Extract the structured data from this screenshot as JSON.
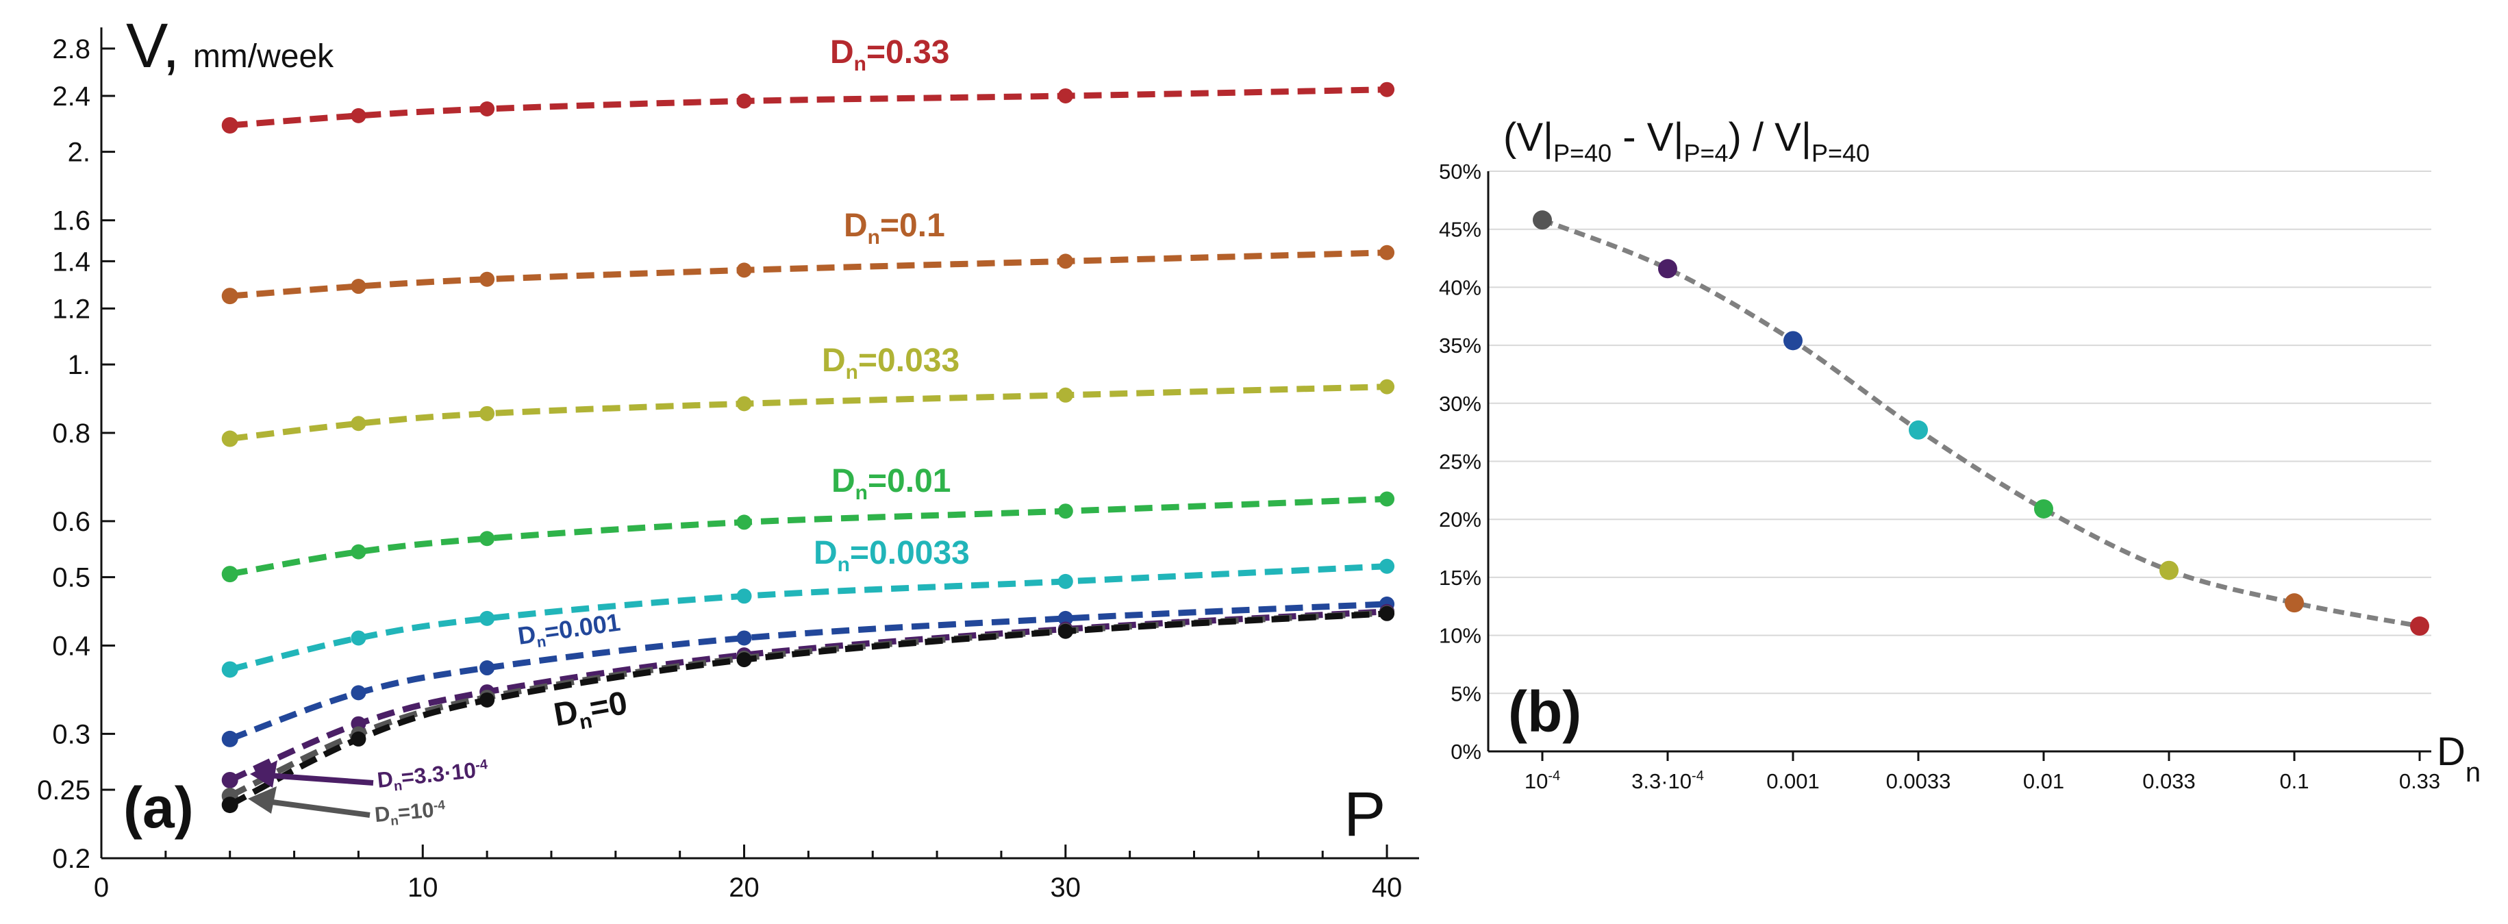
{
  "chart_data": [
    {
      "panel": "a",
      "type": "line",
      "title": "",
      "panel_label": "(a)",
      "ylabel": {
        "main": "V,",
        "unit": "mm/week"
      },
      "xlabel": "P",
      "y_scale": "log",
      "xlim": [
        0,
        41
      ],
      "ylim": [
        0.2,
        3.0
      ],
      "x_ticks": [
        0,
        10,
        20,
        30,
        40
      ],
      "y_ticks": [
        {
          "value": 0.2,
          "label": "0.2"
        },
        {
          "value": 0.25,
          "label": "0.25"
        },
        {
          "value": 0.3,
          "label": "0.3"
        },
        {
          "value": 0.4,
          "label": "0.4"
        },
        {
          "value": 0.5,
          "label": "0.5"
        },
        {
          "value": 0.6,
          "label": "0.6"
        },
        {
          "value": 0.8,
          "label": "0.8"
        },
        {
          "value": 1.0,
          "label": "1."
        },
        {
          "value": 1.2,
          "label": "1.2"
        },
        {
          "value": 1.4,
          "label": "1.4"
        },
        {
          "value": 1.6,
          "label": "1.6"
        },
        {
          "value": 2.0,
          "label": "2."
        },
        {
          "value": 2.4,
          "label": "2.4"
        },
        {
          "value": 2.8,
          "label": "2.8"
        }
      ],
      "x": [
        4,
        8,
        12,
        20,
        30,
        40
      ],
      "series": [
        {
          "name": "D_n=0.33",
          "label_base": "D",
          "label_sub": "n",
          "label_rest": "=0.33",
          "color": "#b5292e",
          "values": [
            2.18,
            2.25,
            2.3,
            2.36,
            2.4,
            2.45
          ]
        },
        {
          "name": "D_n=0.1",
          "label_base": "D",
          "label_sub": "n",
          "label_rest": "=0.1",
          "color": "#b4602a",
          "values": [
            1.25,
            1.29,
            1.32,
            1.36,
            1.4,
            1.44
          ]
        },
        {
          "name": "D_n=0.033",
          "label_base": "D",
          "label_sub": "n",
          "label_rest": "=0.033",
          "color": "#b0b335",
          "values": [
            0.785,
            0.825,
            0.852,
            0.88,
            0.905,
            0.93
          ]
        },
        {
          "name": "D_n=0.01",
          "label_base": "D",
          "label_sub": "n",
          "label_rest": "=0.01",
          "color": "#2fb34a",
          "values": [
            0.505,
            0.543,
            0.567,
            0.598,
            0.62,
            0.645
          ]
        },
        {
          "name": "D_n=0.0033",
          "label_base": "D",
          "label_sub": "n",
          "label_rest": "=0.0033",
          "color": "#21b5b9",
          "values": [
            0.37,
            0.41,
            0.437,
            0.47,
            0.493,
            0.518
          ]
        },
        {
          "name": "D_n=0.001",
          "label_base": "D",
          "label_sub": "n",
          "label_rest": "=0.001",
          "color": "#22479a",
          "values": [
            0.295,
            0.343,
            0.372,
            0.41,
            0.437,
            0.458
          ]
        },
        {
          "name": "D_n=3.3·10^-4",
          "label_base": "D",
          "label_sub": "n",
          "label_rest": "=3.3·10",
          "label_sup": "-4",
          "color": "#4b1f66",
          "values": [
            0.258,
            0.31,
            0.344,
            0.388,
            0.422,
            0.447
          ]
        },
        {
          "name": "D_n=10^-4",
          "label_base": "D",
          "label_sub": "n",
          "label_rest": "=10",
          "label_sup": "-4",
          "color": "#555555",
          "values": [
            0.245,
            0.3,
            0.338,
            0.384,
            0.42,
            0.445
          ]
        },
        {
          "name": "D_n=0",
          "label_base": "D",
          "label_sub": "n",
          "label_rest": "=0",
          "color": "#111111",
          "values": [
            0.238,
            0.295,
            0.335,
            0.382,
            0.419,
            0.444
          ]
        }
      ]
    },
    {
      "panel": "b",
      "type": "line",
      "panel_label": "(b)",
      "title": {
        "open": "(V|",
        "sub1": "P=40",
        "mid": " - V|",
        "sub2": "P=4",
        "slash": ") / V|",
        "sub3": "P=40"
      },
      "xlabel": {
        "base": "D",
        "sub": "n"
      },
      "ylim": [
        0,
        50
      ],
      "y_ticks": [
        "0%",
        "5%",
        "10%",
        "15%",
        "20%",
        "25%",
        "30%",
        "35%",
        "40%",
        "45%",
        "50%"
      ],
      "categories": [
        {
          "label": "10",
          "sup": "-4"
        },
        {
          "label": "3.3·10",
          "sup": "-4"
        },
        {
          "label": "0.001",
          "sup": ""
        },
        {
          "label": "0.0033",
          "sup": ""
        },
        {
          "label": "0.01",
          "sup": ""
        },
        {
          "label": "0.033",
          "sup": ""
        },
        {
          "label": "0.1",
          "sup": ""
        },
        {
          "label": "0.33",
          "sup": ""
        }
      ],
      "values": [
        45.8,
        41.6,
        35.4,
        27.7,
        20.9,
        15.6,
        12.8,
        10.8
      ],
      "colors": [
        "#555555",
        "#4b1f66",
        "#22479a",
        "#21b5b9",
        "#2fb34a",
        "#b0b335",
        "#b4602a",
        "#b5292e"
      ],
      "line_color": "#808080"
    }
  ]
}
